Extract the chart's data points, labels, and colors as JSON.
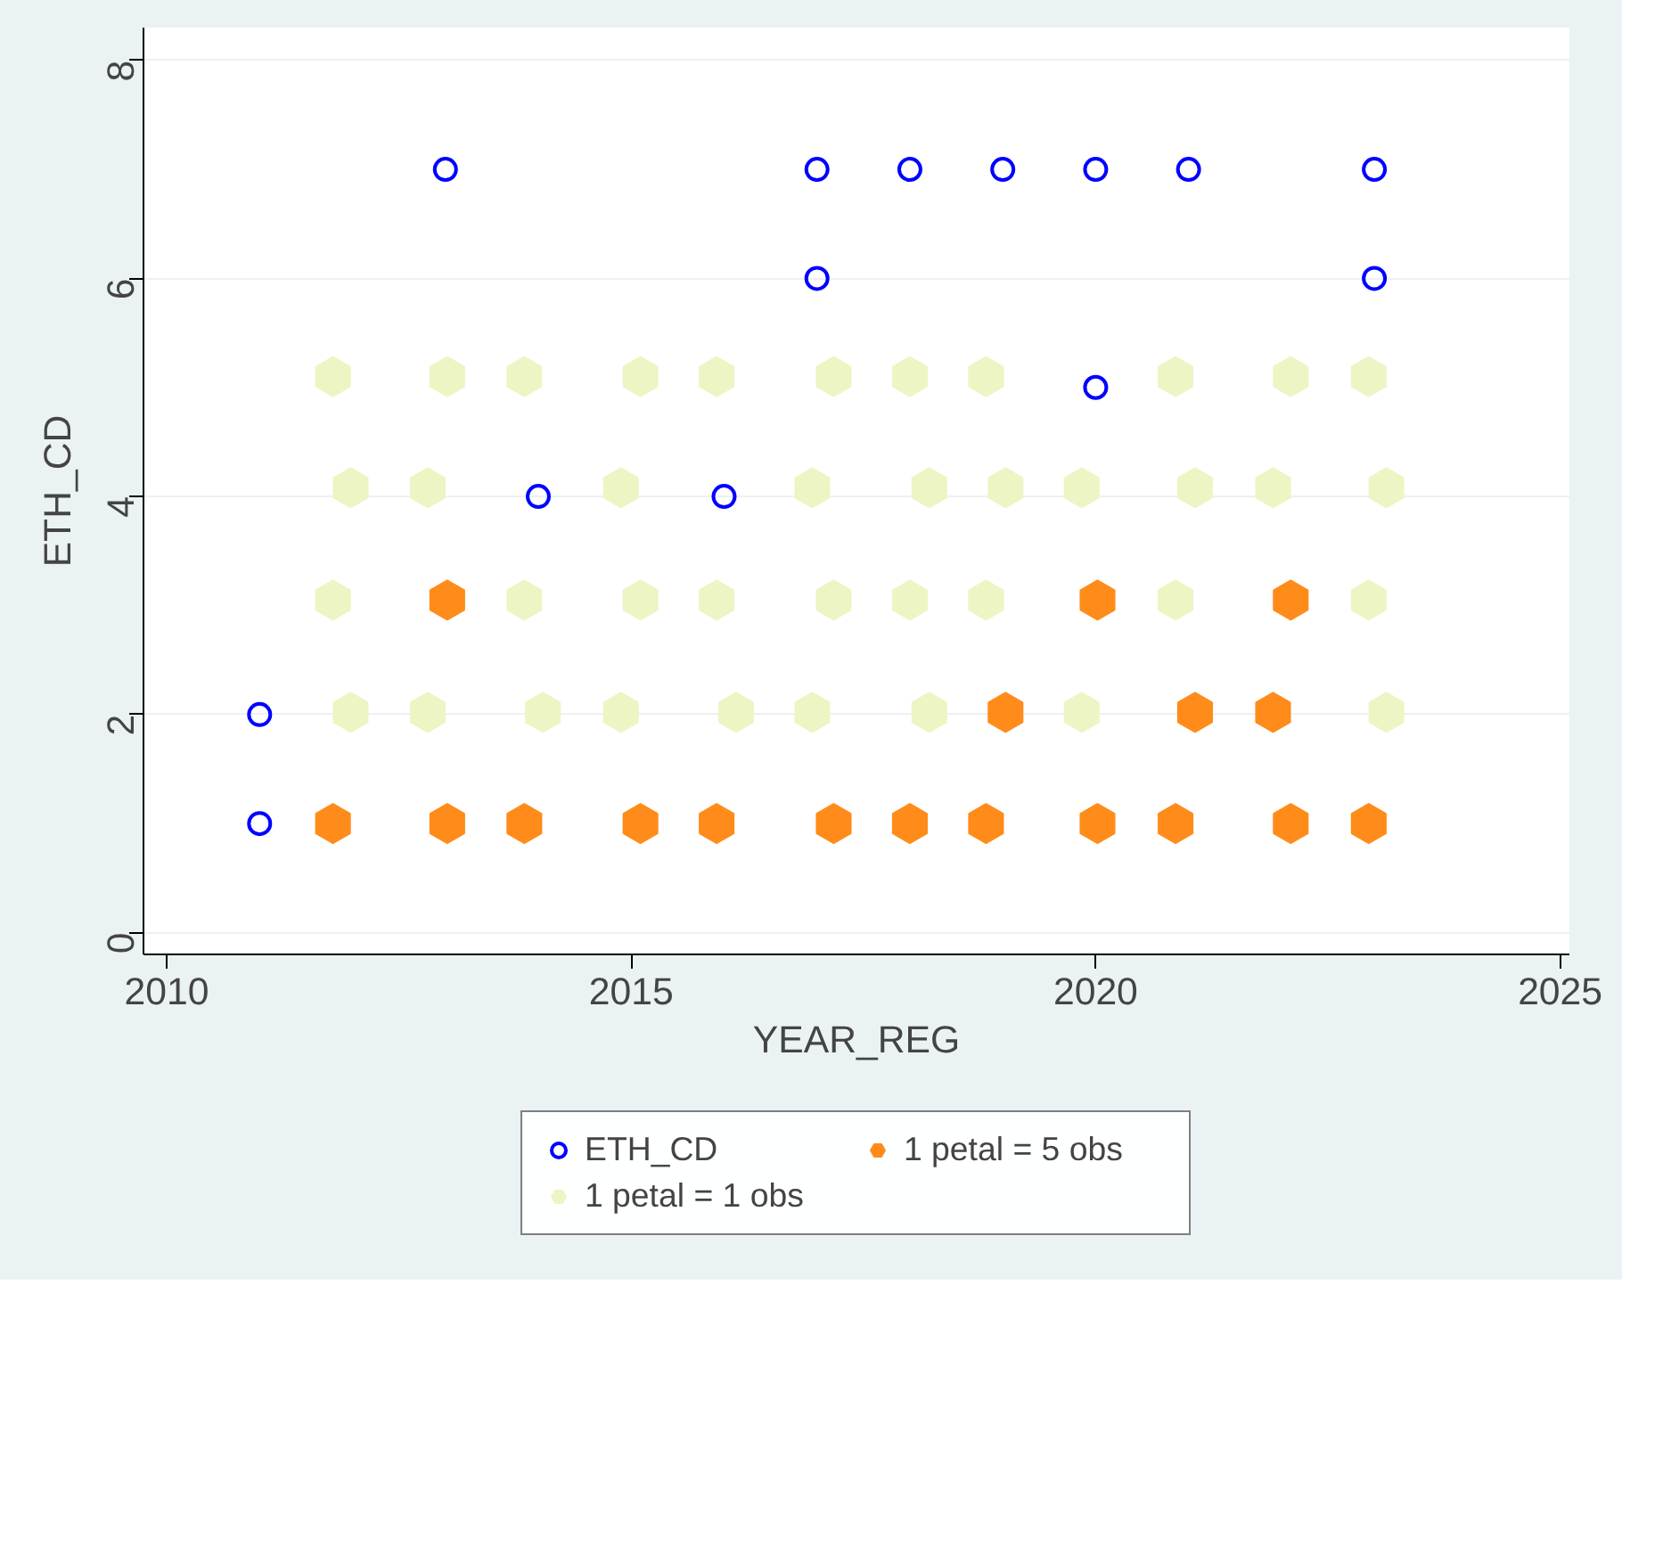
{
  "chart_data": {
    "type": "scatter",
    "xlabel": "YEAR_REG",
    "ylabel": "ETH_CD",
    "xlim": [
      2009.75,
      2025.1
    ],
    "ylim": [
      -0.2,
      8.3
    ],
    "xticks": [
      2010,
      2015,
      2020,
      2025
    ],
    "yticks": [
      0,
      2,
      4,
      6,
      8
    ],
    "grid": "y",
    "legend": "bottom",
    "series": [
      {
        "name": "ETH_CD",
        "color": "#0000ff",
        "marker": "circle",
        "x": [
          2013,
          2017,
          2017,
          2018,
          2019,
          2020,
          2021,
          2023,
          2023,
          2020,
          2014,
          2016,
          2011,
          2011
        ],
        "values": [
          7,
          7,
          6,
          7,
          7,
          7,
          7,
          7,
          6,
          5,
          4,
          4,
          2,
          1
        ]
      },
      {
        "name": "1 petal = 1 obs",
        "color": "#eef5c4",
        "x": [
          2011.79,
          2013.02,
          2013.85,
          2015.1,
          2015.92,
          2017.18,
          2018.0,
          2018.82,
          2020.86,
          2022.1,
          2022.94,
          2011.98,
          2012.81,
          2014.89,
          2016.95,
          2018.21,
          2019.03,
          2019.85,
          2021.07,
          2021.91,
          2023.13,
          2011.79,
          2013.85,
          2015.1,
          2015.92,
          2017.18,
          2018.0,
          2018.82,
          2020.86,
          2022.94,
          2011.98,
          2012.81,
          2014.05,
          2014.89,
          2016.13,
          2016.95,
          2018.21,
          2019.85,
          2023.13
        ],
        "values": [
          5.1,
          5.1,
          5.1,
          5.1,
          5.1,
          5.1,
          5.1,
          5.1,
          5.1,
          5.1,
          5.1,
          4.08,
          4.08,
          4.08,
          4.08,
          4.08,
          4.08,
          4.08,
          4.08,
          4.08,
          4.08,
          3.05,
          3.05,
          3.05,
          3.05,
          3.05,
          3.05,
          3.05,
          3.05,
          3.05,
          2.02,
          2.02,
          2.02,
          2.02,
          2.02,
          2.02,
          2.02,
          2.02,
          2.02
        ]
      },
      {
        "name": "1 petal = 5 obs",
        "color": "#ff8c1a",
        "x": [
          2013.02,
          2020.02,
          2022.1,
          2019.03,
          2021.07,
          2021.91,
          2011.79,
          2013.02,
          2013.85,
          2015.1,
          2015.92,
          2017.18,
          2018.0,
          2018.82,
          2020.02,
          2020.86,
          2022.1,
          2022.94
        ],
        "values": [
          3.05,
          3.05,
          3.05,
          2.02,
          2.02,
          2.02,
          1,
          1,
          1,
          1,
          1,
          1,
          1,
          1,
          1,
          1,
          1,
          1
        ]
      }
    ]
  }
}
